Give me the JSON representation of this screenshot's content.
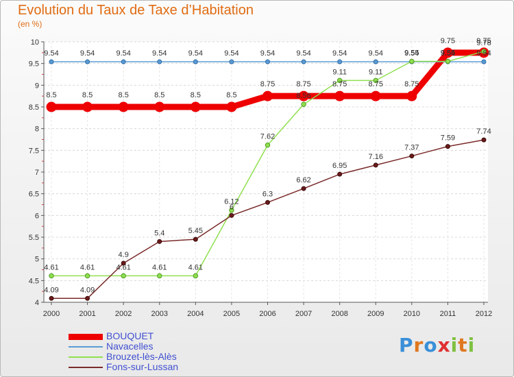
{
  "header": {
    "title": "Evolution du Taux de Taxe d’Habitation",
    "unit": "(en %)"
  },
  "chart_data": {
    "type": "line",
    "title": "Evolution du Taux de Taxe d’Habitation",
    "ylabel": "(en %)",
    "xlabel": "",
    "x": [
      "2000",
      "2001",
      "2002",
      "2003",
      "2004",
      "2005",
      "2006",
      "2007",
      "2008",
      "2009",
      "2010",
      "2011",
      "2012"
    ],
    "ylim": [
      4,
      10
    ],
    "yticks": [
      "4",
      "4.5",
      "5",
      "5.5",
      "6",
      "6.5",
      "7",
      "7.5",
      "8",
      "8.5",
      "9",
      "9.5",
      "10"
    ],
    "grid": "horizontal dashed",
    "legend": "bottom-left",
    "series": [
      {
        "name": "BOUQUET",
        "color": "#ee0000",
        "values": [
          8.5,
          8.5,
          8.5,
          8.5,
          8.5,
          8.5,
          8.75,
          8.75,
          8.75,
          8.75,
          8.75,
          9.75,
          9.75
        ],
        "labels": [
          "8.5",
          "8.5",
          "8.5",
          "8.5",
          "8.5",
          "8.5",
          "8.75",
          "8.75",
          "8.75",
          "8.75",
          "8.75",
          "9.75",
          "9.75"
        ]
      },
      {
        "name": "Navacelles",
        "color": "#5b9bd5",
        "values": [
          9.54,
          9.54,
          9.54,
          9.54,
          9.54,
          9.54,
          9.54,
          9.54,
          9.54,
          9.54,
          9.54,
          9.54,
          9.54
        ],
        "labels": [
          "9.54",
          "9.54",
          "9.54",
          "9.54",
          "9.54",
          "9.54",
          "9.54",
          "9.54",
          "9.54",
          "9.54",
          "9.54",
          "9.54",
          "9.54"
        ]
      },
      {
        "name": "Brouzet-lès-Alès",
        "color": "#90e050",
        "values": [
          4.61,
          4.61,
          4.61,
          4.61,
          4.61,
          6.12,
          7.62,
          8.56,
          9.11,
          9.11,
          9.55,
          9.55,
          9.78
        ],
        "labels": [
          "4.61",
          "4.61",
          "4.61",
          "4.61",
          "4.61",
          "6.12",
          "7.62",
          "8.56",
          "9.11",
          "9.11",
          "9.55",
          "9.55",
          "9.78"
        ]
      },
      {
        "name": "Fons-sur-Lussan",
        "color": "#7b2a2a",
        "values": [
          4.09,
          4.09,
          4.9,
          5.4,
          5.45,
          6,
          6.3,
          6.62,
          6.95,
          7.16,
          7.37,
          7.59,
          7.74
        ],
        "labels": [
          "4.09",
          "4.09",
          "4.9",
          "5.4",
          "5.45",
          "6",
          "6.3",
          "6.62",
          "6.95",
          "7.16",
          "7.37",
          "7.59",
          "7.74"
        ]
      }
    ]
  },
  "logo": {
    "text": "Proxiti",
    "colors": [
      "#3a8fd8",
      "#e07820",
      "#3a8fd8",
      "#e03030",
      "#80c040",
      "#e07820",
      "#80c040"
    ]
  }
}
